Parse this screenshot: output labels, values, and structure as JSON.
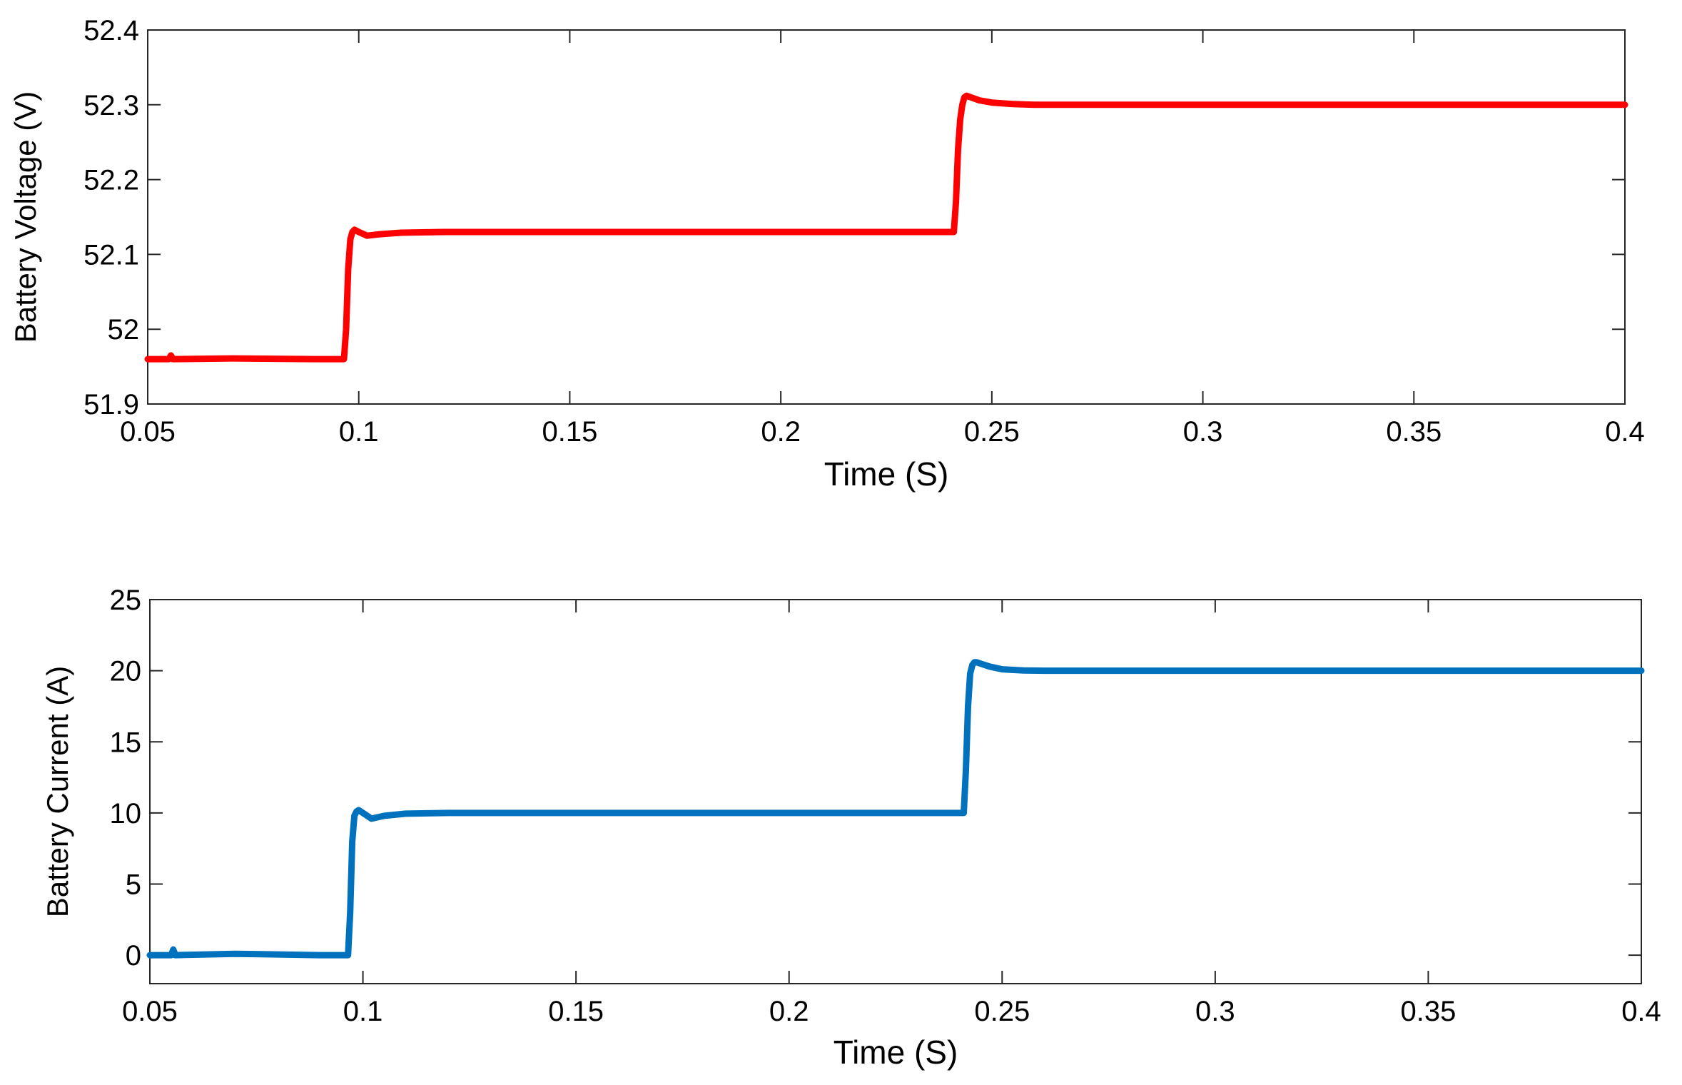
{
  "chart_data": [
    {
      "type": "line",
      "xlabel": "Time (S)",
      "ylabel": "Battery Voltage (V)",
      "xlim": [
        0.05,
        0.4
      ],
      "ylim": [
        51.9,
        52.4
      ],
      "xticks": [
        "0.05",
        "0.1",
        "0.15",
        "0.2",
        "0.25",
        "0.3",
        "0.35",
        "0.4"
      ],
      "yticks": [
        "51.9",
        "52",
        "52.1",
        "52.2",
        "52.3",
        "52.4"
      ],
      "color": "#ff0000",
      "series": [
        {
          "x": [
            0.05,
            0.055,
            0.0555,
            0.056,
            0.07,
            0.09,
            0.0965,
            0.097,
            0.0975,
            0.098,
            0.0985,
            0.099,
            0.1,
            0.102,
            0.105,
            0.11,
            0.12,
            0.15,
            0.2,
            0.241,
            0.2415,
            0.242,
            0.2425,
            0.243,
            0.2435,
            0.244,
            0.245,
            0.247,
            0.25,
            0.255,
            0.26,
            0.3,
            0.35,
            0.4
          ],
          "y": [
            51.96,
            51.96,
            51.965,
            51.96,
            51.961,
            51.96,
            51.96,
            52.0,
            52.08,
            52.12,
            52.13,
            52.133,
            52.13,
            52.125,
            52.127,
            52.129,
            52.13,
            52.13,
            52.13,
            52.13,
            52.17,
            52.24,
            52.28,
            52.3,
            52.31,
            52.312,
            52.31,
            52.306,
            52.303,
            52.301,
            52.3,
            52.3,
            52.3,
            52.3
          ]
        }
      ]
    },
    {
      "type": "line",
      "xlabel": "Time (S)",
      "ylabel": "Battery Current (A)",
      "xlim": [
        0.05,
        0.4
      ],
      "ylim": [
        -2,
        25
      ],
      "xticks": [
        "0.05",
        "0.1",
        "0.15",
        "0.2",
        "0.25",
        "0.3",
        "0.35",
        "0.4"
      ],
      "yticks": [
        "0",
        "5",
        "10",
        "15",
        "20",
        "25"
      ],
      "color": "#0072bd",
      "series": [
        {
          "x": [
            0.05,
            0.055,
            0.0555,
            0.056,
            0.07,
            0.09,
            0.0965,
            0.097,
            0.0975,
            0.098,
            0.0985,
            0.099,
            0.1,
            0.102,
            0.105,
            0.11,
            0.12,
            0.15,
            0.2,
            0.241,
            0.2415,
            0.242,
            0.2425,
            0.243,
            0.2435,
            0.244,
            0.245,
            0.247,
            0.25,
            0.255,
            0.26,
            0.3,
            0.35,
            0.4
          ],
          "y": [
            0,
            0,
            0.4,
            0,
            0.1,
            0,
            0,
            3,
            8,
            9.8,
            10.1,
            10.2,
            10.0,
            9.6,
            9.8,
            9.95,
            10,
            10,
            10,
            10,
            13,
            17.5,
            19.8,
            20.4,
            20.6,
            20.6,
            20.5,
            20.3,
            20.1,
            20.02,
            20,
            20,
            20,
            20
          ]
        }
      ]
    }
  ]
}
